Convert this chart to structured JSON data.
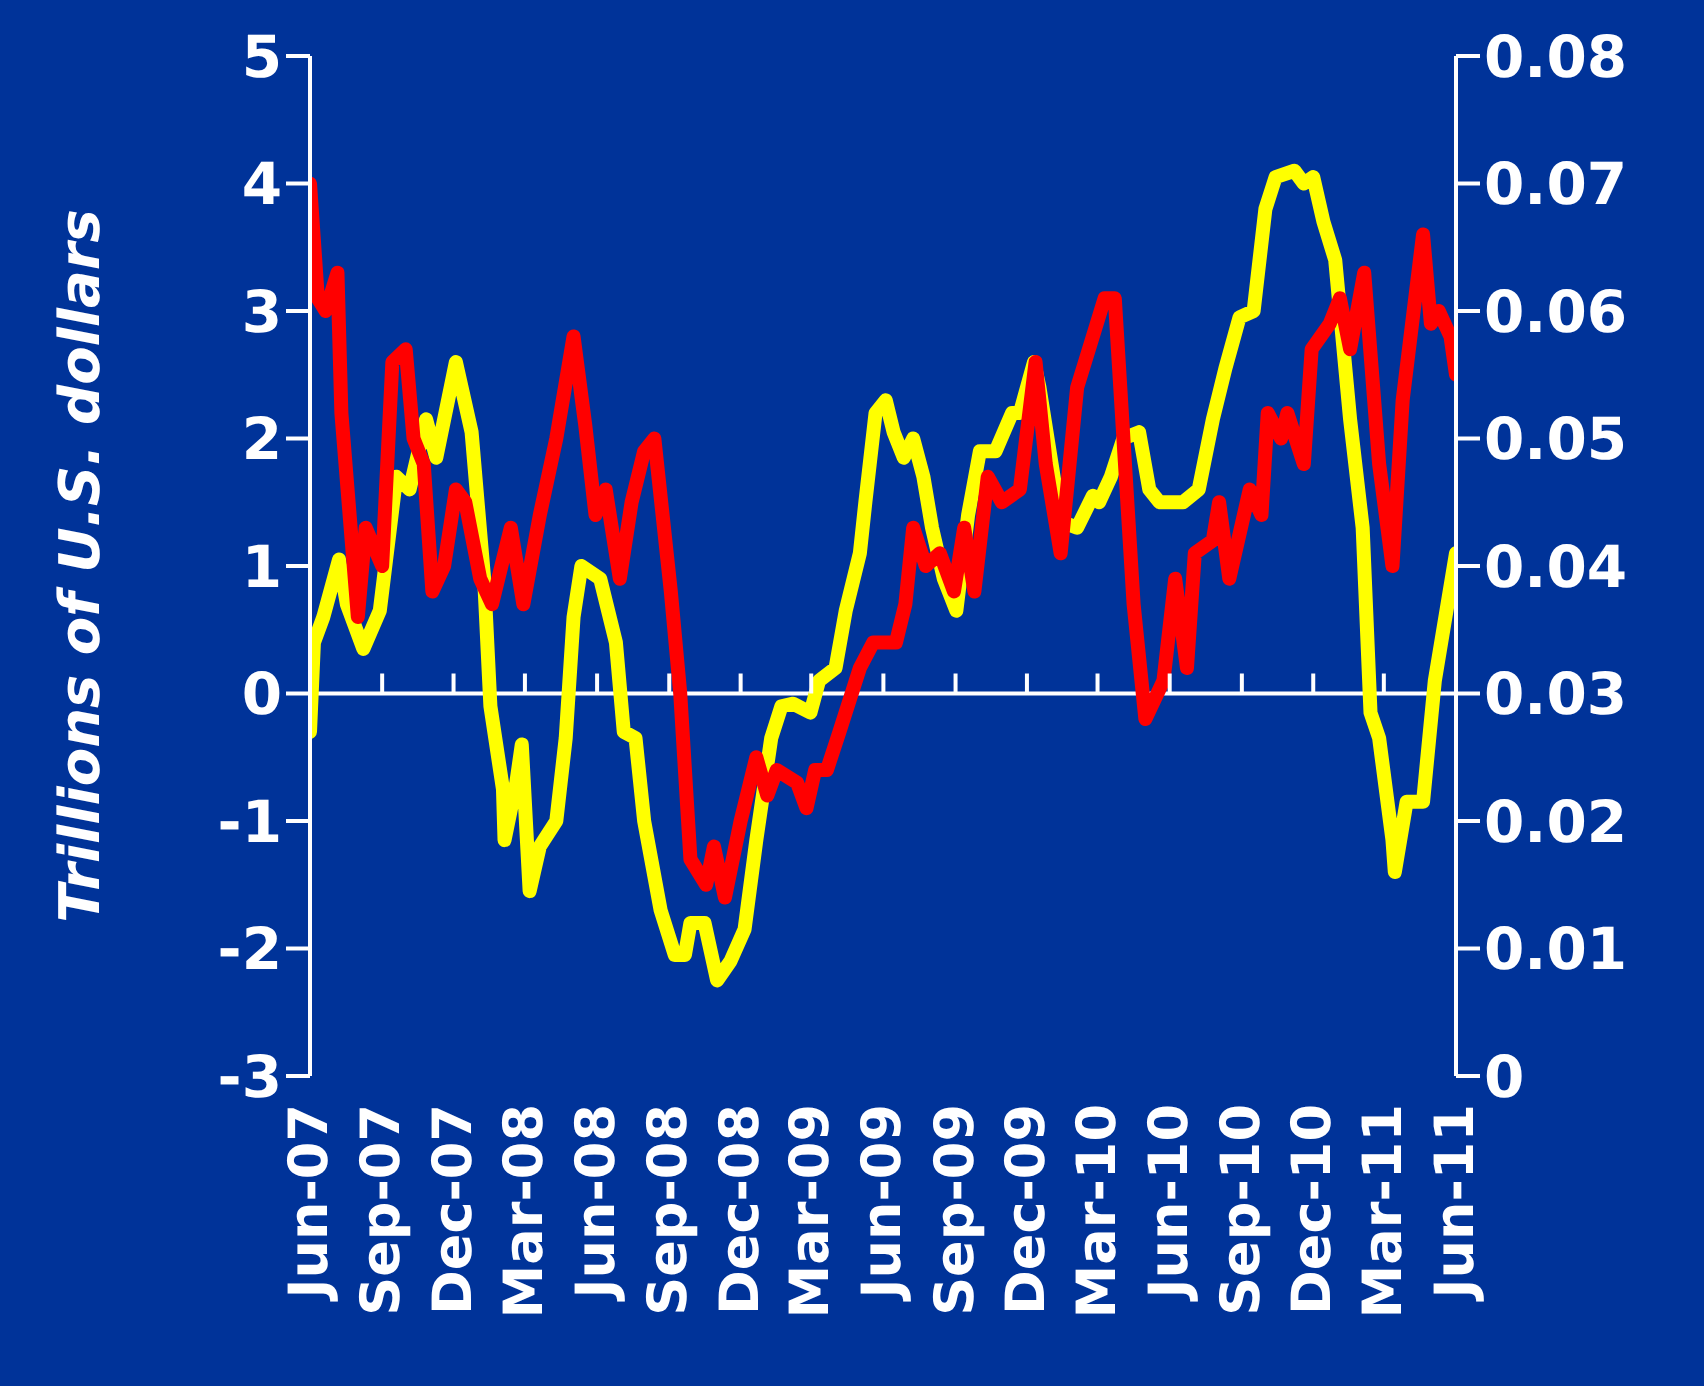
{
  "chart_data": {
    "type": "line",
    "ylabel": "Trillions of U.S. dollars",
    "marker": "none",
    "line_style": "solid",
    "legend": false,
    "ref_lines": [
      {
        "axis": "y",
        "value": 0,
        "color": "#ffffff"
      }
    ],
    "xlim": [
      "2007-06-01",
      "2011-06-01"
    ],
    "xticks": [
      {
        "value": "2007-06-01",
        "label": "Jun-07"
      },
      {
        "value": "2007-09-01",
        "label": "Sep-07"
      },
      {
        "value": "2007-12-01",
        "label": "Dec-07"
      },
      {
        "value": "2008-03-01",
        "label": "Mar-08"
      },
      {
        "value": "2008-06-01",
        "label": "Jun-08"
      },
      {
        "value": "2008-09-01",
        "label": "Sep-08"
      },
      {
        "value": "2008-12-01",
        "label": "Dec-08"
      },
      {
        "value": "2009-03-01",
        "label": "Mar-09"
      },
      {
        "value": "2009-06-01",
        "label": "Jun-09"
      },
      {
        "value": "2009-09-01",
        "label": "Sep-09"
      },
      {
        "value": "2009-12-01",
        "label": "Dec-09"
      },
      {
        "value": "2010-03-01",
        "label": "Mar-10"
      },
      {
        "value": "2010-06-01",
        "label": "Jun-10"
      },
      {
        "value": "2010-09-01",
        "label": "Sep-10"
      },
      {
        "value": "2010-12-01",
        "label": "Dec-10"
      },
      {
        "value": "2011-03-01",
        "label": "Mar-11"
      },
      {
        "value": "2011-06-01",
        "label": "Jun-11"
      }
    ],
    "ylim": [
      -3,
      5
    ],
    "yticks": [
      -3,
      -2,
      -1,
      0,
      1,
      2,
      3,
      4,
      5
    ],
    "y2lim": [
      0,
      0.08
    ],
    "y2ticks": [
      0,
      0.01,
      0.02,
      0.03,
      0.04,
      0.05,
      0.06,
      0.07,
      0.08
    ],
    "series": [
      {
        "color": "#ffff00",
        "axis": "y",
        "x": [
          "2007-06-01",
          "2007-06-06",
          "2007-06-18",
          "2007-07-08",
          "2007-07-18",
          "2007-08-08",
          "2007-08-29",
          "2007-09-19",
          "2007-10-06",
          "2007-10-27",
          "2007-11-09",
          "2007-12-04",
          "2007-12-24",
          "2008-01-09",
          "2008-01-17",
          "2008-02-02",
          "2008-02-04",
          "2008-02-19",
          "2008-02-26",
          "2008-03-07",
          "2008-03-20",
          "2008-04-10",
          "2008-04-22",
          "2008-05-02",
          "2008-05-12",
          "2008-06-05",
          "2008-06-25",
          "2008-07-05",
          "2008-07-20",
          "2008-07-31",
          "2008-08-21",
          "2008-09-08",
          "2008-09-21",
          "2008-09-28",
          "2008-10-16",
          "2008-11-01",
          "2008-11-18",
          "2008-12-06",
          "2008-12-21",
          "2009-01-09",
          "2009-01-22",
          "2009-02-06",
          "2009-02-28",
          "2009-03-11",
          "2009-04-01",
          "2009-04-14",
          "2009-05-02",
          "2009-05-09",
          "2009-05-22",
          "2009-06-04",
          "2009-06-14",
          "2009-06-27",
          "2009-07-09",
          "2009-07-22",
          "2009-08-02",
          "2009-08-17",
          "2009-09-02",
          "2009-09-17",
          "2009-10-02",
          "2009-10-22",
          "2009-11-12",
          "2009-11-22",
          "2009-12-10",
          "2009-12-17",
          "2010-01-13",
          "2010-02-03",
          "2010-02-23",
          "2010-03-03",
          "2010-03-18",
          "2010-04-03",
          "2010-04-23",
          "2010-05-06",
          "2010-05-19",
          "2010-06-04",
          "2010-06-18",
          "2010-07-08",
          "2010-07-26",
          "2010-08-11",
          "2010-08-29",
          "2010-09-16",
          "2010-10-01",
          "2010-10-14",
          "2010-11-07",
          "2010-11-19",
          "2010-12-01",
          "2010-12-14",
          "2010-12-29",
          "2011-01-17",
          "2011-02-02",
          "2011-02-12",
          "2011-02-23",
          "2011-03-12",
          "2011-03-15",
          "2011-03-30",
          "2011-04-20",
          "2011-05-05",
          "2011-06-01"
        ],
        "values": [
          -0.3,
          0.4,
          0.6,
          1.05,
          0.7,
          0.35,
          0.65,
          1.7,
          1.6,
          2.15,
          1.85,
          2.6,
          2.05,
          0.9,
          -0.1,
          -0.75,
          -1.15,
          -0.7,
          -0.4,
          -1.55,
          -1.2,
          -1.0,
          -0.35,
          0.6,
          1.0,
          0.9,
          0.4,
          -0.3,
          -0.35,
          -1.0,
          -1.7,
          -2.05,
          -2.05,
          -1.8,
          -1.8,
          -2.25,
          -2.1,
          -1.85,
          -1.15,
          -0.35,
          -0.1,
          -0.08,
          -0.15,
          0.1,
          0.2,
          0.65,
          1.1,
          1.5,
          2.2,
          2.3,
          2.05,
          1.85,
          2.0,
          1.7,
          1.3,
          0.9,
          0.65,
          1.4,
          1.9,
          1.9,
          2.2,
          2.2,
          2.6,
          2.4,
          1.35,
          1.3,
          1.55,
          1.5,
          1.7,
          2.0,
          2.05,
          1.6,
          1.5,
          1.5,
          1.5,
          1.6,
          2.15,
          2.55,
          2.95,
          3.0,
          3.8,
          4.05,
          4.1,
          4.0,
          4.05,
          3.7,
          3.4,
          2.15,
          1.3,
          -0.15,
          -0.35,
          -1.15,
          -1.4,
          -0.85,
          -0.85,
          0.1,
          1.1
        ]
      },
      {
        "color": "#ff0000",
        "axis": "y2",
        "x": [
          "2007-06-01",
          "2007-06-11",
          "2007-06-21",
          "2007-07-06",
          "2007-07-11",
          "2007-08-01",
          "2007-08-11",
          "2007-09-01",
          "2007-09-14",
          "2007-10-01",
          "2007-10-11",
          "2007-10-24",
          "2007-11-04",
          "2007-11-19",
          "2007-12-04",
          "2007-12-16",
          "2008-01-04",
          "2008-01-19",
          "2008-02-12",
          "2008-02-28",
          "2008-03-20",
          "2008-04-10",
          "2008-05-02",
          "2008-05-17",
          "2008-05-30",
          "2008-06-12",
          "2008-06-30",
          "2008-07-15",
          "2008-07-31",
          "2008-08-13",
          "2008-09-03",
          "2008-09-15",
          "2008-09-28",
          "2008-10-18",
          "2008-10-28",
          "2008-11-11",
          "2008-12-01",
          "2008-12-21",
          "2009-01-04",
          "2009-01-16",
          "2009-02-11",
          "2009-02-23",
          "2009-03-06",
          "2009-03-21",
          "2009-04-06",
          "2009-05-02",
          "2009-05-19",
          "2009-06-17",
          "2009-06-29",
          "2009-07-09",
          "2009-07-25",
          "2009-08-12",
          "2009-08-30",
          "2009-09-12",
          "2009-09-25",
          "2009-10-12",
          "2009-10-30",
          "2009-11-22",
          "2009-12-12",
          "2009-12-25",
          "2010-01-13",
          "2010-02-03",
          "2010-02-23",
          "2010-03-10",
          "2010-03-23",
          "2010-04-16",
          "2010-05-01",
          "2010-05-24",
          "2010-06-08",
          "2010-06-23",
          "2010-07-03",
          "2010-07-26",
          "2010-08-03",
          "2010-08-16",
          "2010-09-11",
          "2010-09-26",
          "2010-10-04",
          "2010-10-21",
          "2010-10-29",
          "2010-11-19",
          "2010-11-29",
          "2010-12-22",
          "2011-01-04",
          "2011-01-17",
          "2011-02-04",
          "2011-02-23",
          "2011-03-12",
          "2011-03-25",
          "2011-04-20",
          "2011-04-30",
          "2011-05-10",
          "2011-05-25",
          "2011-06-01"
        ],
        "values": [
          0.07,
          0.061,
          0.06,
          0.063,
          0.052,
          0.036,
          0.043,
          0.04,
          0.056,
          0.057,
          0.05,
          0.048,
          0.038,
          0.04,
          0.046,
          0.045,
          0.039,
          0.037,
          0.043,
          0.037,
          0.044,
          0.05,
          0.058,
          0.051,
          0.044,
          0.046,
          0.039,
          0.045,
          0.049,
          0.05,
          0.038,
          0.03,
          0.017,
          0.015,
          0.018,
          0.014,
          0.02,
          0.025,
          0.022,
          0.024,
          0.023,
          0.021,
          0.024,
          0.024,
          0.027,
          0.032,
          0.034,
          0.034,
          0.037,
          0.043,
          0.04,
          0.041,
          0.038,
          0.043,
          0.038,
          0.047,
          0.045,
          0.046,
          0.056,
          0.048,
          0.041,
          0.054,
          0.058,
          0.061,
          0.061,
          0.037,
          0.028,
          0.031,
          0.039,
          0.032,
          0.041,
          0.042,
          0.045,
          0.039,
          0.046,
          0.044,
          0.052,
          0.05,
          0.052,
          0.048,
          0.057,
          0.059,
          0.061,
          0.057,
          0.063,
          0.048,
          0.04,
          0.053,
          0.066,
          0.059,
          0.06,
          0.058,
          0.055
        ]
      }
    ]
  }
}
